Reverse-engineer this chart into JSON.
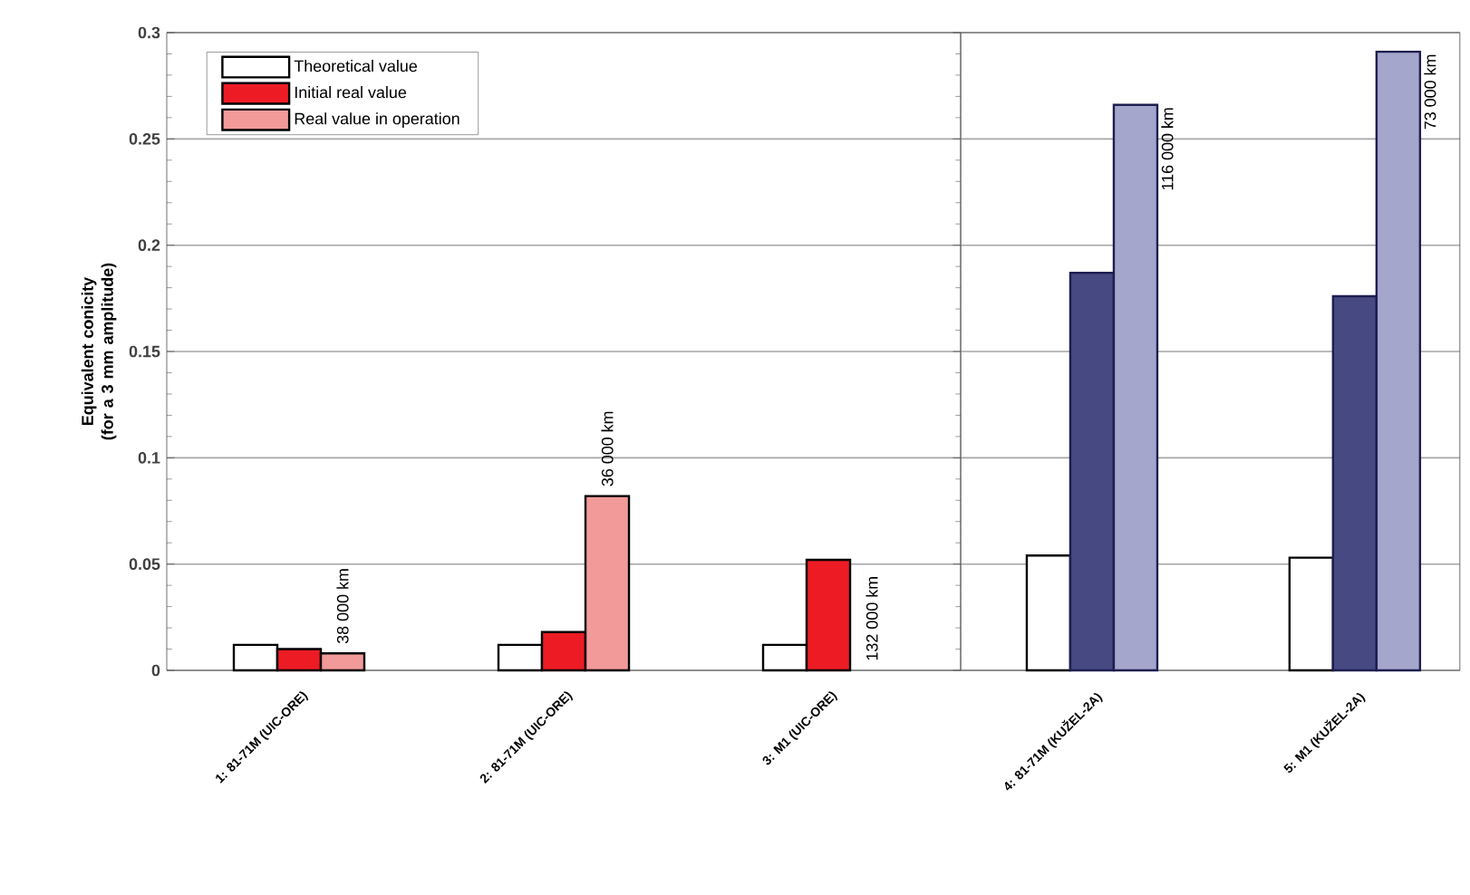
{
  "chart_data": [
    {
      "type": "bar",
      "ylabel": "Equivalent conicity (for a 3 mm amplitude)",
      "categories": [
        "1: 81-71M (UIC-ORE)",
        "2: 81-71M (UIC-ORE)",
        "3: M1 (UIC-ORE)"
      ],
      "series": [
        {
          "name": "Theoretical value",
          "color": "#ffffff",
          "values": [
            0.012,
            0.012,
            0.012
          ]
        },
        {
          "name": "Initial real value",
          "color": "#ed1c24",
          "values": [
            0.01,
            0.018,
            0.052
          ]
        },
        {
          "name": "Real value in operation",
          "color": "#f29a9a",
          "values": [
            0.008,
            0.082,
            null
          ]
        }
      ],
      "annotations": [
        "38 000 km",
        "36 000 km",
        "132 000 km"
      ],
      "ylim": [
        0,
        0.3
      ],
      "yticks": [
        0,
        0.05,
        0.1,
        0.15,
        0.2,
        0.25,
        0.3
      ],
      "grid": "y",
      "legend": "top left"
    },
    {
      "type": "bar",
      "categories": [
        "4: 81-71M (KUŽEL-2A)",
        "5: M1 (KUŽEL-2A)"
      ],
      "series": [
        {
          "color": "#ffffff",
          "values": [
            0.054,
            0.053
          ]
        },
        {
          "color": "#474a82",
          "values": [
            0.187,
            0.176
          ]
        },
        {
          "color": "#a4a6cc",
          "values": [
            0.266,
            0.291
          ]
        }
      ],
      "annotations": [
        "116 000 km",
        "73 000 km"
      ],
      "ylim": [
        0,
        0.3
      ],
      "yticks": [
        0,
        0.05,
        0.1,
        0.15,
        0.2,
        0.25,
        0.3
      ],
      "tick_labels": "x",
      "grid": "y"
    }
  ]
}
